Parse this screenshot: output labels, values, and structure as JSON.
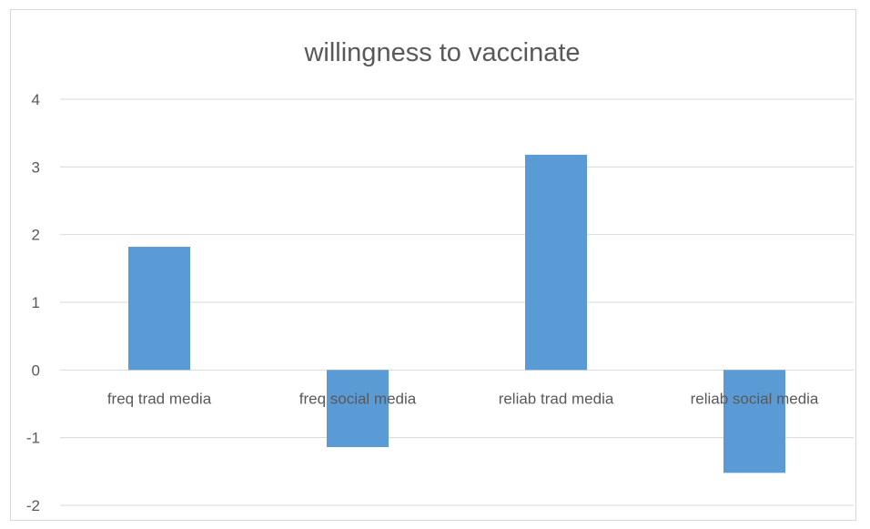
{
  "chart_data": {
    "type": "bar",
    "title": "willingness to vaccinate",
    "xlabel": "",
    "ylabel": "",
    "categories": [
      "freq trad media",
      "freq social media",
      "reliab trad media",
      "reliab social media"
    ],
    "values": [
      1.82,
      -1.14,
      3.18,
      -1.52
    ],
    "ylim": [
      -2,
      4
    ],
    "yticks": [
      4,
      3,
      2,
      1,
      0,
      -1,
      -2
    ],
    "grid": true,
    "legend": "none",
    "colors": {
      "bar": "#5b9bd5",
      "grid": "#d9d9d9",
      "text": "#595959"
    }
  }
}
